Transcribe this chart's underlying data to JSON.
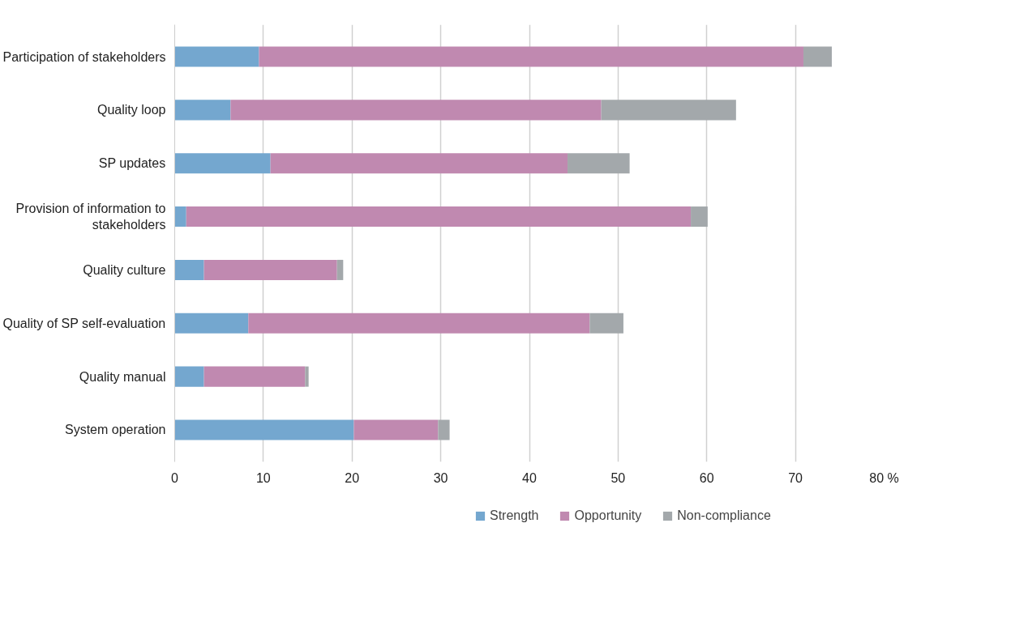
{
  "chart_data": {
    "type": "bar",
    "orientation": "horizontal",
    "stacked": true,
    "categories": [
      "Participation of stakeholders",
      "Quality loop",
      "SP updates",
      "Provision of information to stakeholders",
      "Quality culture",
      "Quality of SP self-evaluation",
      "Quality manual",
      "System operation"
    ],
    "series": [
      {
        "name": "Strength",
        "color": "#74a7cf",
        "values": [
          9.5,
          6.3,
          10.8,
          1.3,
          3.3,
          8.3,
          3.3,
          20.2
        ]
      },
      {
        "name": "Opportunity",
        "color": "#c089b0",
        "values": [
          61.4,
          41.8,
          33.5,
          56.9,
          15.0,
          38.5,
          11.4,
          9.5
        ]
      },
      {
        "name": "Non-compliance",
        "color": "#a3a8ab",
        "values": [
          3.2,
          15.2,
          7.0,
          1.9,
          0.7,
          3.8,
          0.4,
          1.3
        ]
      }
    ],
    "xlim": [
      0,
      80
    ],
    "xticks": [
      0,
      10,
      20,
      30,
      40,
      50,
      60,
      70,
      {
        "value": 80,
        "label": "80 %"
      }
    ],
    "grid": "x",
    "legend": "bottom"
  }
}
